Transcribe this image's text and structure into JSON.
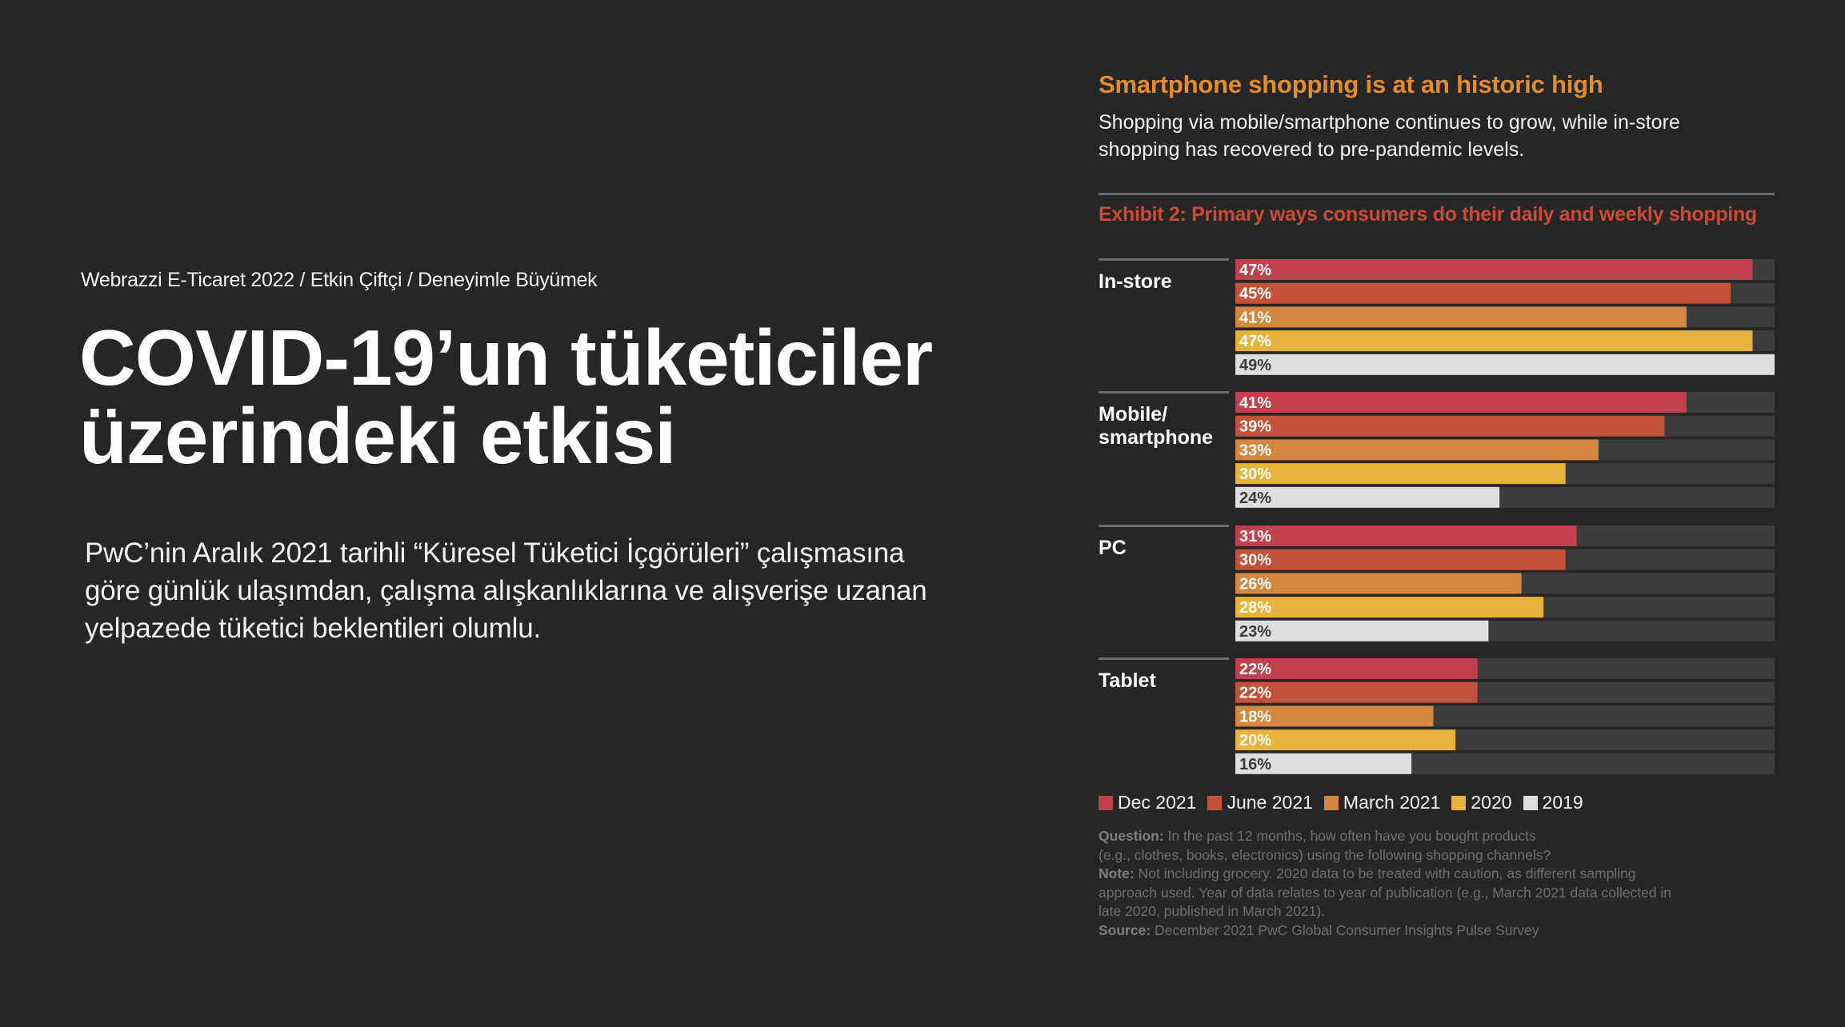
{
  "breadcrumb": "Webrazzi E-Ticaret 2022 / Etkin Çiftçi / Deneyimle Büyümek",
  "title_line1": "COVID-19’un tüketiciler",
  "title_line2": "üzerindeki etkisi",
  "intro_line1": "PwC’nin Aralık 2021 tarihli “Küresel Tüketici İçgörüleri” çalışmasına",
  "intro_line2": "göre günlük ulaşımdan, çalışma alışkanlıklarına ve alışverişe uzanan",
  "intro_line3": "yelpazede tüketici beklentileri olumlu.",
  "chart_data": {
    "type": "bar",
    "orientation": "horizontal",
    "title": "Smartphone shopping is at an historic high",
    "subtitle_line1": "Shopping via mobile/smartphone continues to grow, while in-store",
    "subtitle_line2": "shopping has recovered to pre-pandemic levels.",
    "exhibit": "Exhibit 2: Primary ways consumers do their daily and weekly shopping",
    "categories": [
      {
        "line1": "In-store",
        "line2": ""
      },
      {
        "line1": "Mobile/",
        "line2": "smartphone"
      },
      {
        "line1": "PC",
        "line2": ""
      },
      {
        "line1": "Tablet",
        "line2": ""
      }
    ],
    "series": [
      {
        "name": "Dec 2021",
        "color": "#c0404e",
        "values": [
          47,
          41,
          31,
          22
        ],
        "labels": [
          "47%",
          "41%",
          "31%",
          "22%"
        ]
      },
      {
        "name": "June 2021",
        "color": "#c2523a",
        "values": [
          45,
          39,
          30,
          22
        ],
        "labels": [
          "45%",
          "39%",
          "30%",
          "22%"
        ]
      },
      {
        "name": "March 2021",
        "color": "#d4883f",
        "values": [
          41,
          33,
          26,
          18
        ],
        "labels": [
          "41%",
          "33%",
          "26%",
          "18%"
        ]
      },
      {
        "name": "2020",
        "color": "#e8b33c",
        "values": [
          47,
          30,
          28,
          20
        ],
        "labels": [
          "47%",
          "30%",
          "28%",
          "20%"
        ]
      },
      {
        "name": "2019",
        "color": "#dedede",
        "values": [
          49,
          24,
          23,
          16
        ],
        "labels": [
          "49%",
          "24%",
          "23%",
          "16%"
        ]
      }
    ],
    "xlim": [
      0,
      49
    ],
    "legend_position": "bottom-left",
    "footnotes": {
      "question_label": "Question:",
      "question_text_1": "In the past 12 months, how often have you bought products",
      "question_text_2": "(e.g., clothes, books, electronics) using the following shopping channels?",
      "note_label": "Note:",
      "note_text_1": "Not including grocery. 2020 data to be treated with caution, as different sampling",
      "note_text_2": "approach used. Year of data relates to year of publication (e.g., March 2021 data collected in",
      "note_text_3": "late 2020, published in March 2021).",
      "source_label": "Source:",
      "source_text": "December 2021 PwC Global Consumer Insights Pulse Survey"
    }
  }
}
